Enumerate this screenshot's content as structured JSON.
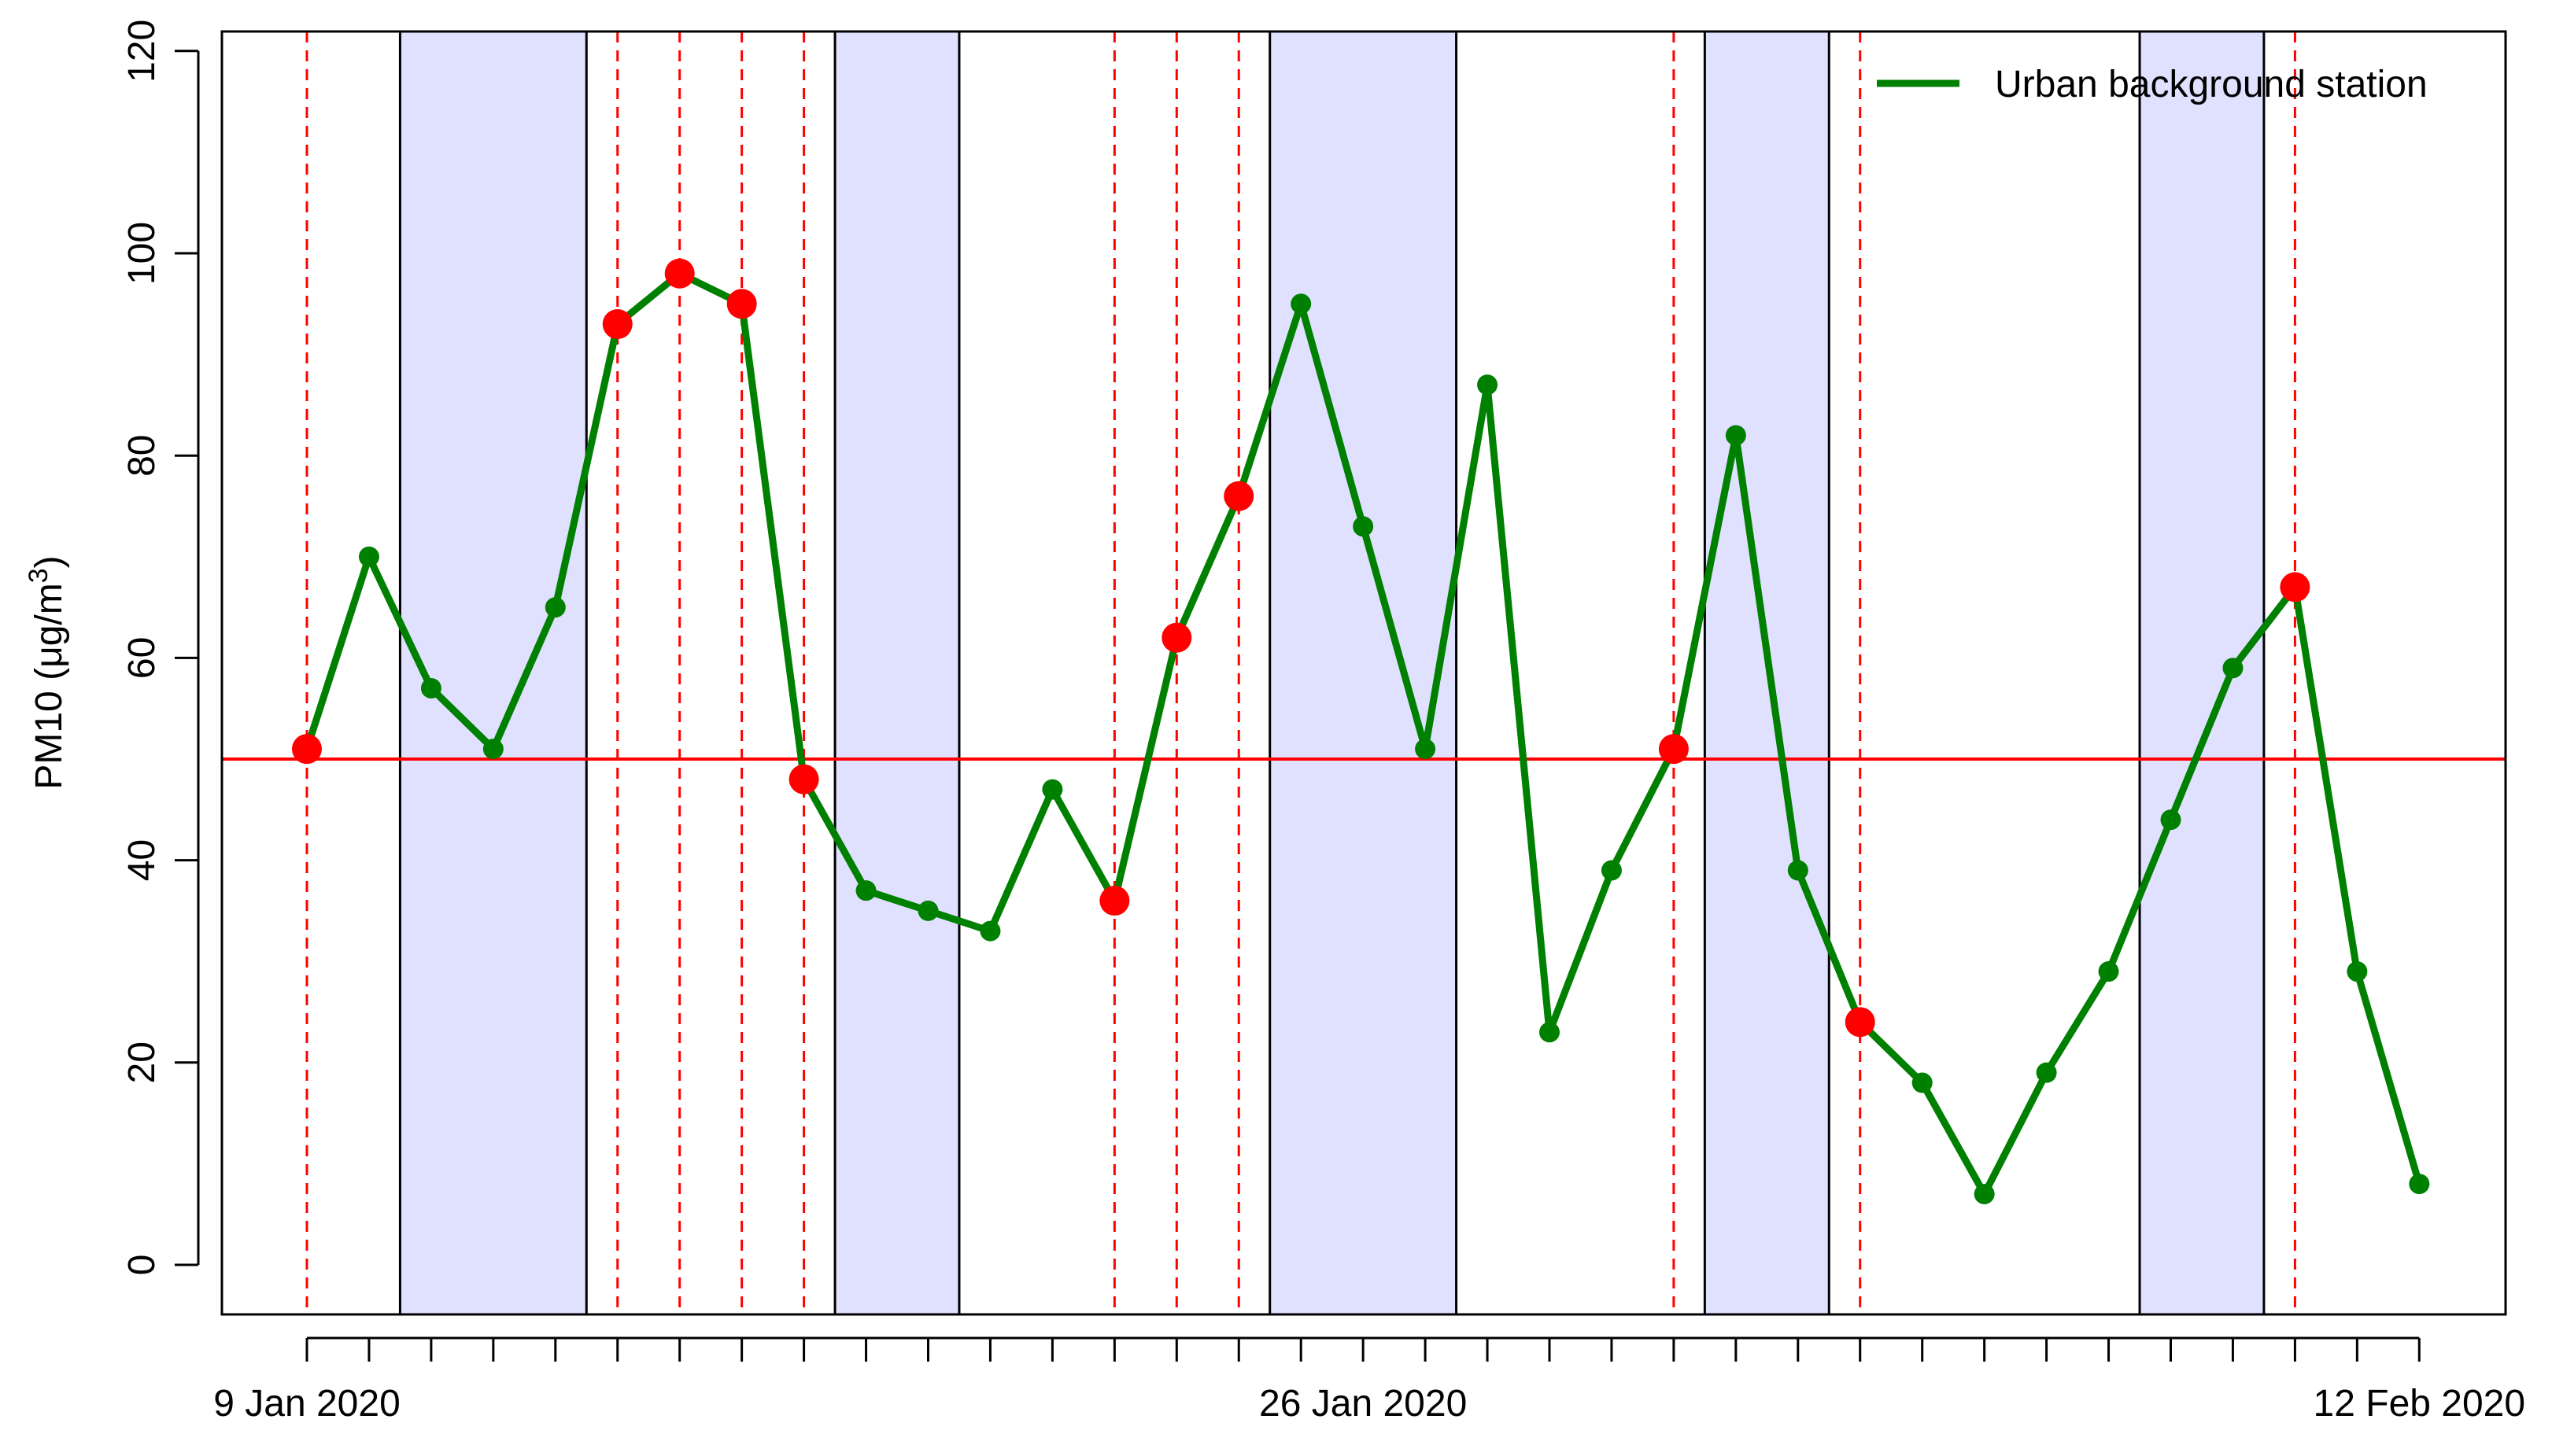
{
  "chart_data": {
    "type": "line",
    "title": "",
    "ylabel_main": "PM10  (μg/m",
    "ylabel_sup": "3",
    "ylabel_close": ")",
    "xlabel": "",
    "ylim": [
      0,
      120
    ],
    "yticks": [
      "0",
      "20",
      "40",
      "60",
      "80",
      "100",
      "120"
    ],
    "x_start": "9 Jan 2020",
    "x_end": "12 Feb 2020",
    "x_tick_labels": [
      {
        "day": 0,
        "label": "9 Jan 2020"
      },
      {
        "day": 17,
        "label": "26 Jan 2020"
      },
      {
        "day": 34,
        "label": "12 Feb 2020"
      }
    ],
    "threshold": {
      "value": 50,
      "color": "#ff0000"
    },
    "shaded_periods": [
      {
        "start": "11 Jan 2020",
        "end": "14 Jan 2020"
      },
      {
        "start": "18 Jan 2020",
        "end": "20 Jan 2020"
      },
      {
        "start": "25 Jan 2020",
        "end": "28 Jan 2020"
      },
      {
        "start": "1 Feb 2020",
        "end": "3 Feb 2020"
      },
      {
        "start": "8 Feb 2020",
        "end": "10 Feb 2020"
      }
    ],
    "shade_color": "#e0e0ff",
    "exceedance_days": [
      0,
      5,
      6,
      7,
      8,
      13,
      14,
      15,
      22,
      25,
      32
    ],
    "exceedance_color": "#ff0000",
    "series": [
      {
        "name": "Urban background station",
        "color": "#008000",
        "values": [
          51,
          70,
          57,
          51,
          65,
          93,
          98,
          95,
          48,
          37,
          35,
          33,
          47,
          36,
          62,
          76,
          95,
          73,
          51,
          87,
          23,
          39,
          51,
          82,
          39,
          24,
          18,
          7,
          19,
          29,
          44,
          59,
          67,
          29,
          8
        ]
      }
    ],
    "legend_position": "top-right",
    "grid": false
  }
}
